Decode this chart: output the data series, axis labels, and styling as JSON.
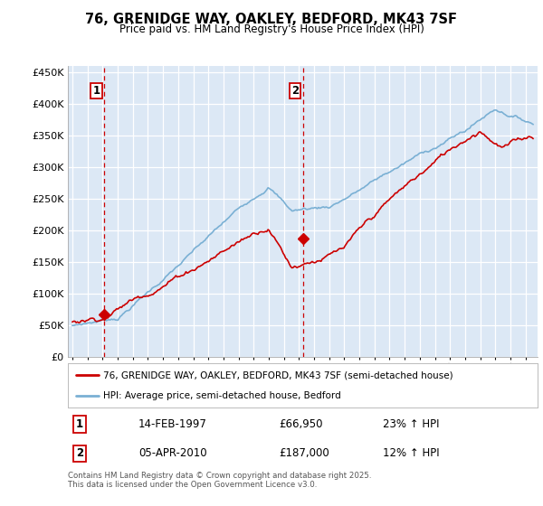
{
  "title": "76, GRENIDGE WAY, OAKLEY, BEDFORD, MK43 7SF",
  "subtitle": "Price paid vs. HM Land Registry's House Price Index (HPI)",
  "ytick_values": [
    0,
    50000,
    100000,
    150000,
    200000,
    250000,
    300000,
    350000,
    400000,
    450000
  ],
  "ylim": [
    0,
    460000
  ],
  "xlim_start": 1994.7,
  "xlim_end": 2025.8,
  "purchase1_x": 1997.12,
  "purchase1_y": 66950,
  "purchase2_x": 2010.27,
  "purchase2_y": 187000,
  "line1_color": "#cc0000",
  "line2_color": "#7ab0d4",
  "vline_color": "#cc0000",
  "plot_bg_color": "#dce8f5",
  "grid_color": "#ffffff",
  "legend1_text": "76, GRENIDGE WAY, OAKLEY, BEDFORD, MK43 7SF (semi-detached house)",
  "legend2_text": "HPI: Average price, semi-detached house, Bedford",
  "purchase1_date": "14-FEB-1997",
  "purchase1_price": "£66,950",
  "purchase1_hpi": "23% ↑ HPI",
  "purchase2_date": "05-APR-2010",
  "purchase2_price": "£187,000",
  "purchase2_hpi": "12% ↑ HPI",
  "footnote": "Contains HM Land Registry data © Crown copyright and database right 2025.\nThis data is licensed under the Open Government Licence v3.0."
}
